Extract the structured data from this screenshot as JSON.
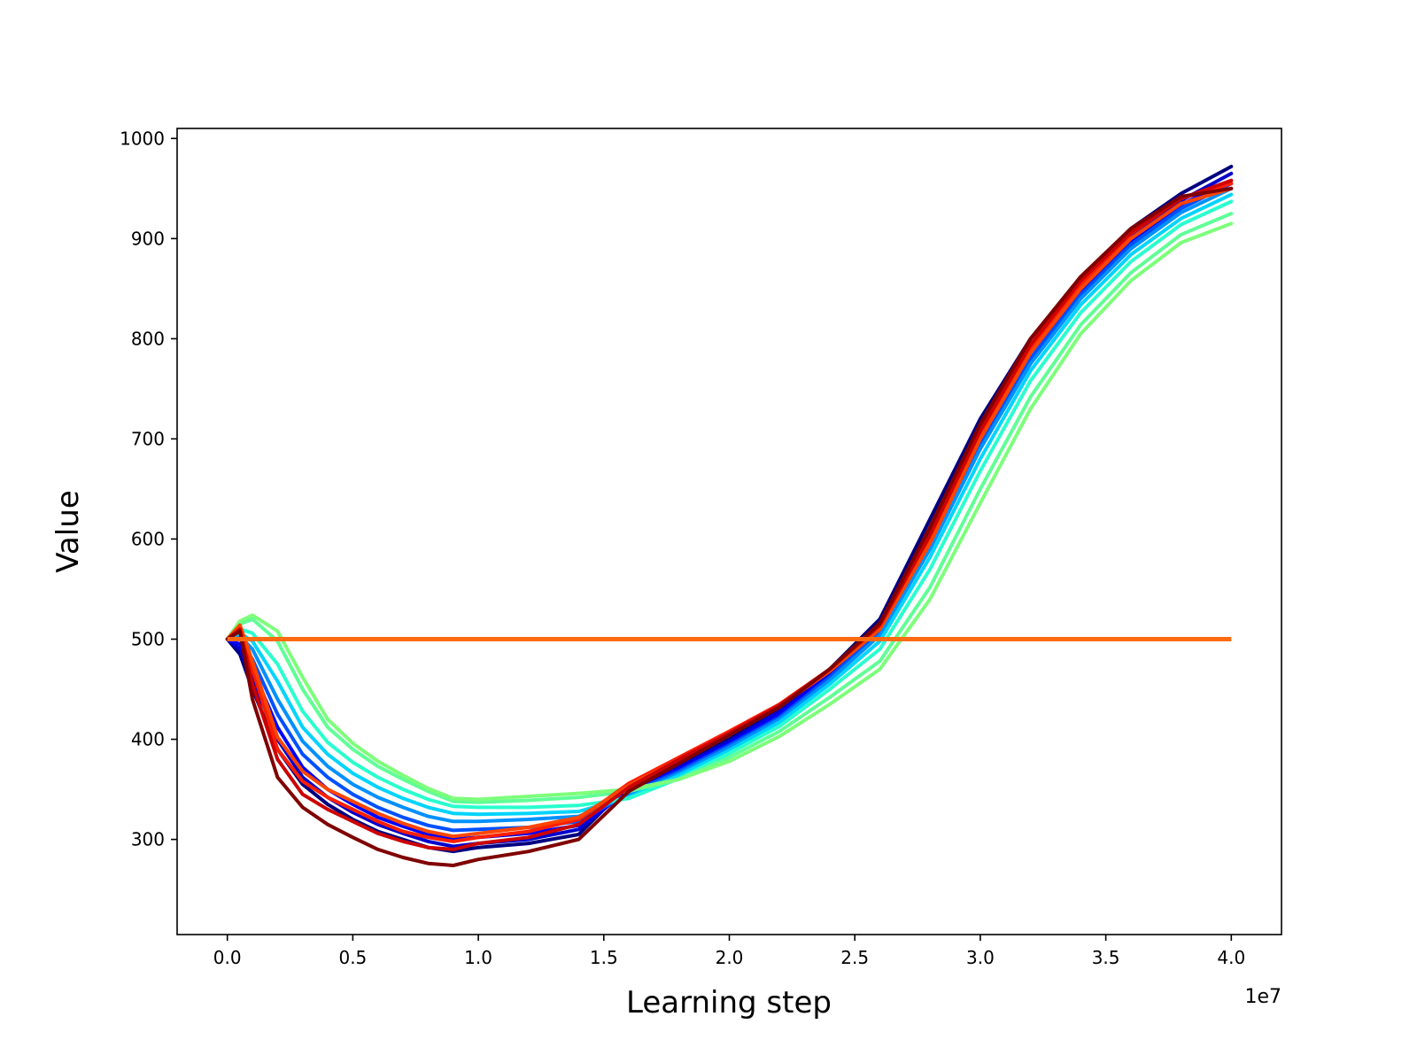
{
  "chart_data": {
    "type": "line",
    "title": "",
    "xlabel": "Learning step",
    "ylabel": "Value",
    "x_offset_text": "1e7",
    "x_scale": 10000000,
    "xlim": [
      -0.2,
      4.2
    ],
    "ylim": [
      205,
      1010
    ],
    "x_ticks": [
      0.0,
      0.5,
      1.0,
      1.5,
      2.0,
      2.5,
      3.0,
      3.5,
      4.0
    ],
    "x_tick_labels": [
      "0.0",
      "0.5",
      "1.0",
      "1.5",
      "2.0",
      "2.5",
      "3.0",
      "3.5",
      "4.0"
    ],
    "y_ticks": [
      300,
      400,
      500,
      600,
      700,
      800,
      900,
      1000
    ],
    "y_tick_labels": [
      "300",
      "400",
      "500",
      "600",
      "700",
      "800",
      "900",
      "1000"
    ],
    "grid": false,
    "legend": "none",
    "colormap": "jet",
    "x": [
      0.0,
      0.05,
      0.1,
      0.2,
      0.3,
      0.4,
      0.5,
      0.6,
      0.7,
      0.8,
      0.9,
      1.0,
      1.2,
      1.4,
      1.6,
      1.8,
      2.0,
      2.2,
      2.4,
      2.6,
      2.8,
      3.0,
      3.2,
      3.4,
      3.6,
      3.8,
      4.0
    ],
    "reference_line": {
      "value": 500,
      "x_range": [
        0.0,
        4.0
      ],
      "color": "#ff6a10"
    },
    "series": [
      {
        "color": "#000080",
        "values": [
          500,
          485,
          450,
          390,
          355,
          335,
          320,
          308,
          300,
          292,
          288,
          292,
          296,
          305,
          355,
          375,
          400,
          430,
          470,
          520,
          620,
          720,
          800,
          860,
          910,
          945,
          972
        ]
      },
      {
        "color": "#0000cd",
        "values": [
          500,
          490,
          460,
          400,
          362,
          342,
          327,
          315,
          306,
          298,
          293,
          296,
          300,
          310,
          350,
          372,
          398,
          428,
          468,
          515,
          610,
          710,
          792,
          853,
          903,
          938,
          965
        ]
      },
      {
        "color": "#0000ff",
        "values": [
          500,
          495,
          470,
          412,
          372,
          350,
          335,
          322,
          313,
          305,
          300,
          302,
          306,
          314,
          348,
          370,
          396,
          425,
          465,
          512,
          602,
          702,
          786,
          848,
          898,
          934,
          958
        ]
      },
      {
        "color": "#0050ff",
        "values": [
          500,
          500,
          480,
          425,
          385,
          362,
          345,
          332,
          322,
          314,
          309,
          310,
          312,
          318,
          346,
          368,
          394,
          422,
          462,
          508,
          596,
          696,
          780,
          844,
          894,
          930,
          955
        ]
      },
      {
        "color": "#0090ff",
        "values": [
          500,
          503,
          490,
          440,
          398,
          373,
          355,
          342,
          332,
          323,
          318,
          318,
          320,
          323,
          344,
          366,
          392,
          420,
          459,
          504,
          590,
          690,
          775,
          840,
          890,
          926,
          950
        ]
      },
      {
        "color": "#00d4ff",
        "values": [
          500,
          506,
          498,
          458,
          412,
          385,
          366,
          352,
          341,
          332,
          326,
          325,
          326,
          328,
          342,
          364,
          389,
          417,
          455,
          498,
          582,
          680,
          768,
          834,
          884,
          920,
          944
        ]
      },
      {
        "color": "#29ffce",
        "values": [
          500,
          510,
          506,
          475,
          428,
          397,
          377,
          362,
          350,
          340,
          333,
          332,
          332,
          334,
          341,
          361,
          386,
          413,
          450,
          490,
          570,
          668,
          758,
          826,
          877,
          914,
          937
        ]
      },
      {
        "color": "#60ff97",
        "values": [
          500,
          515,
          520,
          498,
          450,
          412,
          390,
          373,
          360,
          348,
          338,
          337,
          339,
          342,
          348,
          360,
          382,
          408,
          442,
          478,
          552,
          650,
          742,
          814,
          866,
          904,
          925
        ]
      },
      {
        "color": "#7dff7a",
        "values": [
          500,
          518,
          524,
          508,
          462,
          420,
          396,
          378,
          364,
          351,
          341,
          340,
          343,
          346,
          350,
          360,
          378,
          403,
          435,
          470,
          540,
          636,
          730,
          805,
          858,
          896,
          915
        ]
      },
      {
        "color": "#ff1e00",
        "values": [
          500,
          512,
          470,
          390,
          358,
          342,
          330,
          318,
          308,
          302,
          298,
          302,
          308,
          320,
          356,
          382,
          408,
          435,
          470,
          512,
          600,
          705,
          790,
          855,
          905,
          940,
          955
        ]
      },
      {
        "color": "#ff4500",
        "values": [
          500,
          514,
          478,
          402,
          368,
          350,
          338,
          326,
          316,
          308,
          303,
          306,
          312,
          322,
          354,
          380,
          406,
          433,
          468,
          510,
          596,
          700,
          786,
          850,
          900,
          935,
          950
        ]
      },
      {
        "color": "#cd0000",
        "values": [
          500,
          510,
          455,
          380,
          345,
          330,
          318,
          306,
          298,
          292,
          290,
          296,
          302,
          315,
          352,
          380,
          406,
          434,
          470,
          514,
          604,
          708,
          794,
          858,
          906,
          940,
          958
        ]
      },
      {
        "color": "#800000",
        "values": [
          500,
          508,
          440,
          362,
          332,
          315,
          302,
          290,
          282,
          276,
          274,
          280,
          288,
          300,
          348,
          376,
          404,
          432,
          470,
          516,
          612,
          715,
          800,
          862,
          910,
          942,
          950
        ]
      }
    ]
  }
}
